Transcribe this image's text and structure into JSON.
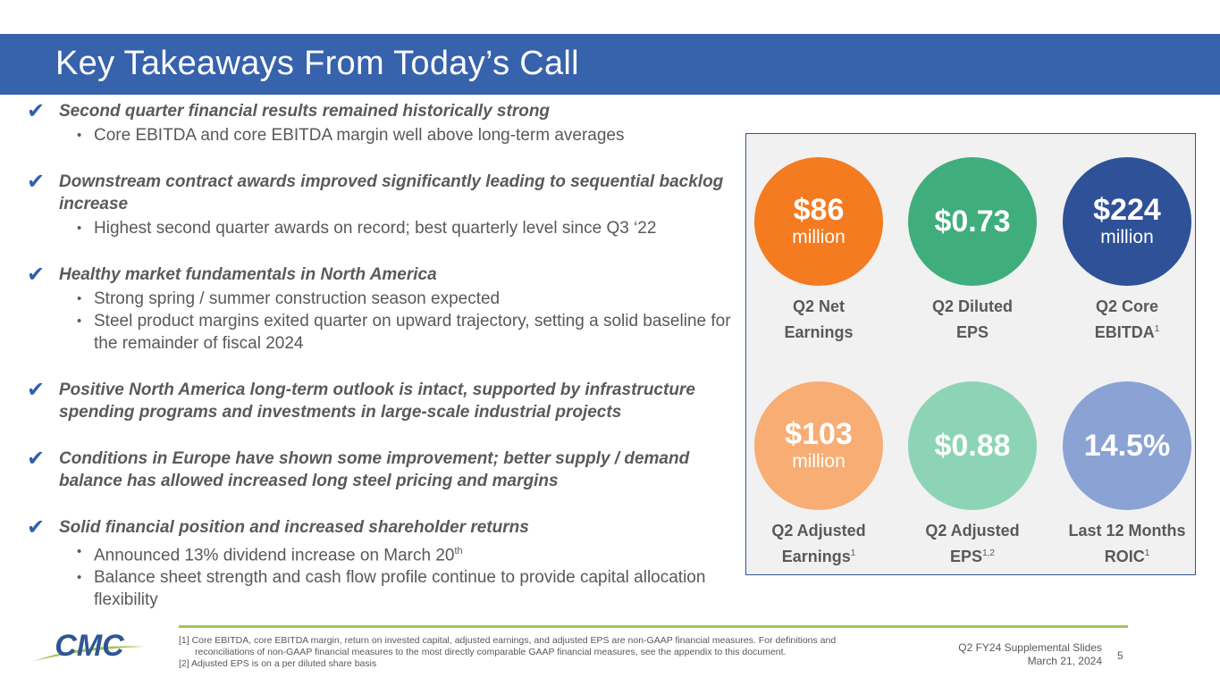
{
  "title": "Key Takeaways From Today’s Call",
  "check_glyph": "✔",
  "points": [
    {
      "heading": "Second quarter financial results remained historically strong",
      "subs": [
        "Core EBITDA and core EBITDA margin well above long-term averages"
      ]
    },
    {
      "heading": "Downstream contract awards improved significantly leading to sequential backlog increase",
      "subs": [
        "Highest second quarter awards on record; best quarterly level since Q3 ‘22"
      ]
    },
    {
      "heading": "Healthy market fundamentals in North America",
      "subs": [
        "Strong spring / summer construction season expected",
        "Steel product margins exited quarter on upward trajectory, setting a solid baseline for the remainder of fiscal 2024"
      ]
    },
    {
      "heading": "Positive North America long-term outlook is intact, supported by infrastructure spending programs and investments in large-scale industrial projects",
      "subs": []
    },
    {
      "heading": "Conditions in Europe have shown some improvement; better supply / demand balance has allowed increased long steel pricing and margins",
      "subs": []
    },
    {
      "heading": "Solid financial position and increased shareholder returns",
      "subs": [
        "Announced 13% dividend increase on March 20",
        "Balance sheet strength and cash flow profile continue to provide capital allocation flexibility"
      ],
      "sub_suffix": "th"
    }
  ],
  "metrics": [
    {
      "value": "$86",
      "unit": "million",
      "label1": "Q2 Net",
      "label2": "Earnings",
      "sup": "",
      "color": "#f47b20"
    },
    {
      "value": "$0.73",
      "unit": "",
      "label1": "Q2 Diluted",
      "label2": "EPS",
      "sup": "",
      "color": "#3fae7c"
    },
    {
      "value": "$224",
      "unit": "million",
      "label1": "Q2 Core",
      "label2": "EBITDA",
      "sup": "1",
      "color": "#2f5197"
    },
    {
      "value": "$103",
      "unit": "million",
      "label1": "Q2 Adjusted",
      "label2": "Earnings",
      "sup": "1",
      "color": "#f7ad74"
    },
    {
      "value": "$0.88",
      "unit": "",
      "label1": "Q2 Adjusted",
      "label2": "EPS",
      "sup": "1,2",
      "color": "#8dd4b6"
    },
    {
      "value": "14.5%",
      "unit": "",
      "label1": "Last 12 Months",
      "label2": "ROIC",
      "sup": "1",
      "color": "#8aa3d4"
    }
  ],
  "footnotes": {
    "line1": "[1] Core EBITDA, core EBITDA margin, return on invested capital, adjusted earnings, and adjusted EPS are non-GAAP financial measures. For definitions and",
    "line2": "reconciliations of non-GAAP financial measures to the most directly comparable GAAP financial measures, see the appendix to this document.",
    "line3": "[2] Adjusted EPS is on a per diluted share basis"
  },
  "deck": {
    "title": "Q2 FY24 Supplemental Slides",
    "date": "March 21, 2024",
    "page": "5"
  },
  "logo": {
    "text": "CMC",
    "colors": {
      "primary": "#2f5597",
      "accent": "#a4c657"
    }
  }
}
